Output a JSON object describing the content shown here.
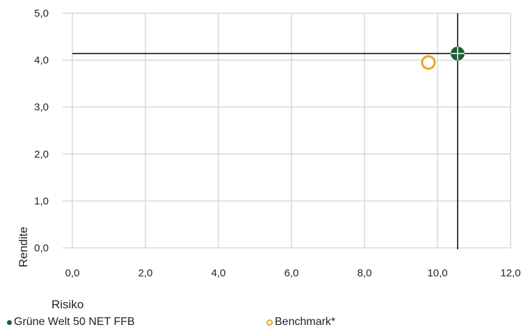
{
  "chart_data": {
    "type": "scatter",
    "xlabel": "Risiko",
    "ylabel": "Rendite",
    "xlim": [
      0,
      12
    ],
    "ylim": [
      0,
      5
    ],
    "x_ticks": [
      "0,0",
      "2,0",
      "4,0",
      "6,0",
      "8,0",
      "10,0",
      "12,0"
    ],
    "x_tick_values": [
      0,
      2,
      4,
      6,
      8,
      10,
      12
    ],
    "y_ticks": [
      "0,0",
      "1,0",
      "2,0",
      "3,0",
      "4,0",
      "5,0"
    ],
    "y_tick_values": [
      0,
      1,
      2,
      3,
      4,
      5
    ],
    "grid": true,
    "legend_position": "bottom",
    "series": [
      {
        "name": "Grüne Welt 50 NET FFB",
        "x": 10.55,
        "y": 4.14,
        "marker": "filled-circle-crosshair",
        "color": "#1b5e35"
      },
      {
        "name": "Benchmark*",
        "x": 9.75,
        "y": 3.95,
        "marker": "hollow-circle",
        "color": "#f0a21e"
      }
    ]
  }
}
